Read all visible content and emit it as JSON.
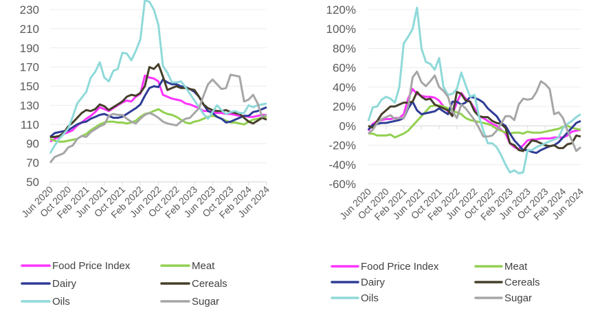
{
  "chart_data": [
    {
      "type": "line",
      "title": "",
      "xlabel": "",
      "ylabel": "",
      "ylim": [
        50,
        230
      ],
      "yticks": [
        "50",
        "70",
        "90",
        "110",
        "130",
        "150",
        "170",
        "190",
        "210",
        "230"
      ],
      "ytick_values": [
        50,
        70,
        90,
        110,
        130,
        150,
        170,
        190,
        210,
        230
      ],
      "x_range": [
        "Jun 2020",
        "Jun 2024"
      ],
      "x_frequency": "monthly",
      "xticks": [
        "Jun 2020",
        "Oct 2020",
        "Feb 2021",
        "Jun 2021",
        "Oct 2021",
        "Feb 2022",
        "Jun 2022",
        "Oct 2022",
        "Feb 2023",
        "Jun 2023",
        "Oct 2023",
        "Feb 2024",
        "Jun 2024"
      ],
      "grid": true,
      "legend": "bottom",
      "series": [
        {
          "name": "Food Price Index",
          "color": "#ff33ff",
          "values": [
            92,
            95,
            97,
            100,
            102,
            104,
            109,
            112,
            116,
            119,
            123,
            128,
            126,
            124,
            127,
            130,
            133,
            135,
            134,
            139,
            142,
            161,
            159,
            158,
            155,
            141,
            139,
            137,
            136,
            135,
            132,
            131,
            129,
            127,
            124,
            124,
            123,
            122,
            122,
            121,
            121,
            120,
            119,
            119,
            118,
            118,
            119,
            120,
            120
          ]
        },
        {
          "name": "Meat",
          "color": "#92d050",
          "values": [
            95,
            93,
            92,
            92,
            93,
            94,
            95,
            98,
            100,
            104,
            107,
            110,
            112,
            113,
            113,
            112,
            112,
            111,
            112,
            114,
            118,
            121,
            122,
            124,
            126,
            123,
            121,
            120,
            118,
            115,
            112,
            111,
            113,
            114,
            116,
            118,
            119,
            118,
            116,
            114,
            112,
            112,
            111,
            110,
            113,
            115,
            116,
            117,
            118
          ]
        },
        {
          "name": "Dairy",
          "color": "#2e3c96",
          "values": [
            97,
            101,
            102,
            103,
            104,
            107,
            110,
            112,
            113,
            116,
            118,
            120,
            121,
            119,
            117,
            117,
            118,
            121,
            124,
            127,
            131,
            140,
            148,
            150,
            149,
            157,
            154,
            152,
            152,
            150,
            149,
            147,
            144,
            139,
            131,
            124,
            122,
            118,
            116,
            112,
            113,
            115,
            117,
            119,
            119,
            123,
            124,
            126,
            128
          ]
        },
        {
          "name": "Cereals",
          "color": "#463f2a",
          "values": [
            97,
            97,
            98,
            101,
            108,
            112,
            117,
            122,
            125,
            124,
            126,
            131,
            129,
            125,
            128,
            131,
            134,
            139,
            141,
            140,
            143,
            150,
            170,
            168,
            173,
            160,
            146,
            148,
            150,
            148,
            148,
            147,
            146,
            139,
            131,
            127,
            125,
            124,
            124,
            125,
            123,
            122,
            121,
            117,
            113,
            111,
            114,
            117,
            115
          ]
        },
        {
          "name": "Oils",
          "color": "#8fd9d9",
          "values": [
            80,
            88,
            95,
            100,
            106,
            118,
            132,
            138,
            144,
            159,
            165,
            175,
            159,
            155,
            166,
            168,
            185,
            184,
            177,
            187,
            199,
            240,
            238,
            230,
            214,
            171,
            164,
            154,
            154,
            155,
            149,
            142,
            135,
            128,
            121,
            116,
            123,
            130,
            125,
            121,
            123,
            124,
            122,
            122,
            130,
            128,
            130,
            131,
            132
          ]
        },
        {
          "name": "Sugar",
          "color": "#a6a6a6",
          "values": [
            70,
            76,
            78,
            80,
            86,
            88,
            95,
            98,
            97,
            102,
            105,
            108,
            110,
            119,
            121,
            120,
            120,
            116,
            113,
            111,
            116,
            120,
            122,
            120,
            117,
            113,
            111,
            110,
            109,
            113,
            116,
            117,
            122,
            127,
            140,
            152,
            157,
            152,
            147,
            148,
            162,
            161,
            160,
            134,
            136,
            141,
            132,
            118,
            120
          ]
        }
      ]
    },
    {
      "type": "line",
      "title": "",
      "xlabel": "",
      "ylabel": "",
      "ylim": [
        -60,
        120
      ],
      "yticks": [
        "-60%",
        "-40%",
        "-20%",
        "0%",
        "20%",
        "40%",
        "60%",
        "80%",
        "100%",
        "120%"
      ],
      "ytick_values": [
        -60,
        -40,
        -20,
        0,
        20,
        40,
        60,
        80,
        100,
        120
      ],
      "x_range": [
        "Jun 2020",
        "Jun 2024"
      ],
      "x_frequency": "monthly",
      "xticks": [
        "Jun 2020",
        "Oct 2020",
        "Feb 2021",
        "Jun 2021",
        "Oct 2021",
        "Feb 2022",
        "Jun 2022",
        "Oct 2022",
        "Feb 2023",
        "Jun 2023",
        "Oct 2023",
        "Feb 2024",
        "Jun 2024"
      ],
      "grid": true,
      "legend": "bottom",
      "series": [
        {
          "name": "Food Price Index",
          "color": "#ff33ff",
          "values": [
            -5,
            2,
            5,
            6,
            7,
            7,
            8,
            8,
            12,
            28,
            38,
            33,
            31,
            30,
            30,
            29,
            26,
            20,
            15,
            12,
            24,
            34,
            28,
            25,
            18,
            10,
            8,
            5,
            2,
            0,
            -4,
            -8,
            -18,
            -22,
            -24,
            -20,
            -15,
            -14,
            -14,
            -13,
            -13,
            -13,
            -12,
            -12,
            -12,
            -10,
            -6,
            -5,
            -4
          ]
        },
        {
          "name": "Meat",
          "color": "#92d050",
          "values": [
            -8,
            -8,
            -10,
            -10,
            -10,
            -9,
            -12,
            -10,
            -8,
            -5,
            0,
            5,
            10,
            15,
            20,
            21,
            21,
            20,
            18,
            15,
            14,
            12,
            8,
            6,
            5,
            4,
            3,
            2,
            0,
            -3,
            -5,
            -7,
            -8,
            -7,
            -7,
            -8,
            -6,
            -7,
            -7,
            -7,
            -6,
            -5,
            -4,
            -3,
            -1,
            0,
            -2,
            -3,
            -4
          ]
        },
        {
          "name": "Dairy",
          "color": "#2e3c96",
          "values": [
            -4,
            1,
            2,
            3,
            3,
            4,
            5,
            6,
            8,
            18,
            25,
            16,
            12,
            13,
            14,
            15,
            18,
            15,
            12,
            25,
            25,
            22,
            24,
            30,
            29,
            27,
            24,
            18,
            14,
            10,
            3,
            0,
            -8,
            -15,
            -20,
            -25,
            -25,
            -27,
            -28,
            -25,
            -23,
            -21,
            -20,
            -17,
            -12,
            -7,
            -2,
            3,
            5
          ]
        },
        {
          "name": "Cereals",
          "color": "#463f2a",
          "values": [
            0,
            -2,
            5,
            12,
            16,
            20,
            20,
            22,
            24,
            24,
            25,
            35,
            30,
            27,
            28,
            22,
            20,
            18,
            16,
            10,
            35,
            33,
            26,
            25,
            15,
            10,
            9,
            9,
            5,
            3,
            2,
            -2,
            -18,
            -20,
            -25,
            -26,
            -20,
            -15,
            -16,
            -18,
            -20,
            -21,
            -20,
            -23,
            -23,
            -19,
            -18,
            -10,
            -11
          ]
        },
        {
          "name": "Oils",
          "color": "#8fd9d9",
          "values": [
            5,
            19,
            20,
            27,
            30,
            28,
            24,
            40,
            85,
            92,
            100,
            122,
            80,
            66,
            64,
            58,
            70,
            40,
            32,
            33,
            38,
            55,
            42,
            30,
            32,
            10,
            -5,
            -18,
            -18,
            -22,
            -30,
            -40,
            -48,
            -46,
            -49,
            -48,
            -25,
            -25,
            -22,
            -20,
            -18,
            -16,
            -14,
            -12,
            -2,
            2,
            5,
            9,
            12
          ]
        },
        {
          "name": "Sugar",
          "color": "#a6a6a6",
          "values": [
            -8,
            -4,
            3,
            7,
            9,
            11,
            7,
            8,
            8,
            20,
            50,
            56,
            45,
            41,
            46,
            52,
            40,
            36,
            30,
            15,
            8,
            22,
            18,
            12,
            6,
            -2,
            -11,
            -11,
            -10,
            -5,
            2,
            10,
            10,
            6,
            22,
            28,
            27,
            28,
            35,
            46,
            43,
            38,
            12,
            14,
            8,
            -5,
            -15,
            -26,
            -22
          ]
        }
      ]
    }
  ]
}
